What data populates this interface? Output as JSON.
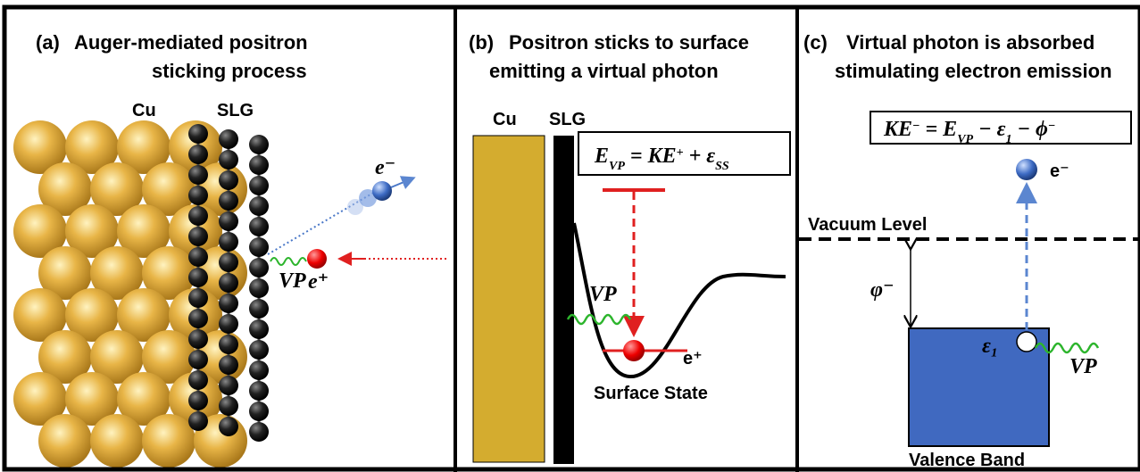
{
  "panel_a": {
    "label": "(a)",
    "title": [
      "Auger-mediated positron",
      "sticking process"
    ],
    "cu": "Cu",
    "slg": "SLG",
    "electron": "e⁻",
    "vp": "VP",
    "positron": "e⁺"
  },
  "panel_b": {
    "label": "(b)",
    "title": [
      "Positron sticks to surface",
      "emitting a virtual photon"
    ],
    "cu": "Cu",
    "slg": "SLG",
    "equation": [
      "E",
      "VP",
      " = KE",
      "+",
      " + ε",
      "SS"
    ],
    "vp": "VP",
    "positron": "e⁺",
    "state": "Surface State"
  },
  "panel_c": {
    "label": "(c)",
    "title": [
      "Virtual photon is absorbed",
      "stimulating electron emission"
    ],
    "equation": [
      "KE",
      "−",
      " = E",
      "VP",
      " − ε",
      "1",
      " − ϕ",
      "−"
    ],
    "electron": "e⁻",
    "vacuum": "Vacuum Level",
    "work": "φ⁻",
    "level": "ε₁",
    "vp": "VP",
    "band": "Valence Band"
  }
}
